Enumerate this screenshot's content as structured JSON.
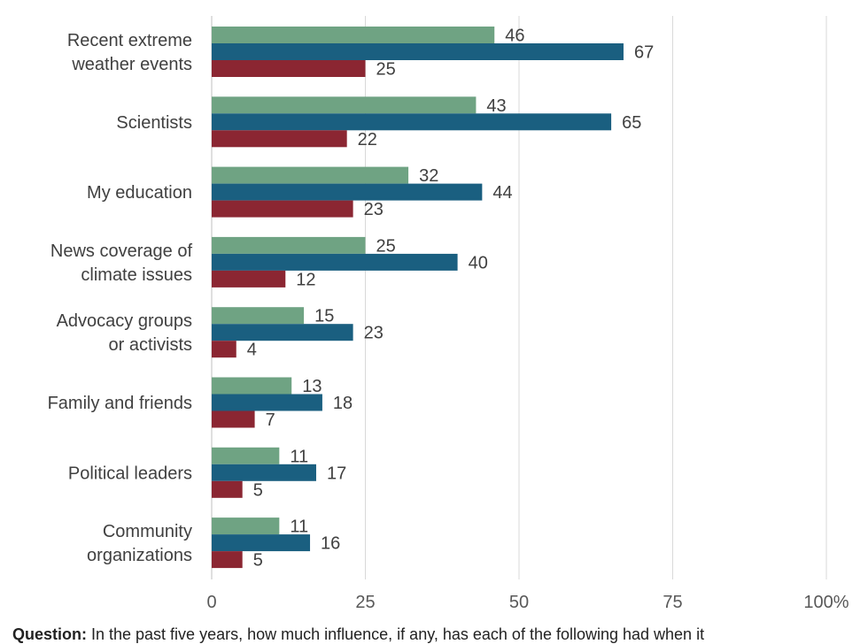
{
  "chart_data": {
    "type": "bar",
    "orientation": "horizontal",
    "categories": [
      [
        "Recent extreme",
        "weather events"
      ],
      [
        "Scientists"
      ],
      [
        "My education"
      ],
      [
        "News coverage of",
        "climate issues"
      ],
      [
        "Advocacy groups",
        "or activists"
      ],
      [
        "Family and friends"
      ],
      [
        "Political leaders"
      ],
      [
        "Community",
        "organizations"
      ]
    ],
    "series": [
      {
        "values": [
          46,
          43,
          32,
          25,
          15,
          13,
          11,
          11
        ],
        "color": "#6fa383"
      },
      {
        "values": [
          67,
          65,
          44,
          40,
          23,
          18,
          17,
          16
        ],
        "color": "#1a5f80"
      },
      {
        "values": [
          25,
          22,
          23,
          12,
          4,
          7,
          5,
          5
        ],
        "color": "#8b2632"
      }
    ],
    "x_ticks": [
      "0",
      "25",
      "50",
      "75",
      "100%"
    ],
    "xlim": [
      0,
      100
    ],
    "grid": true,
    "legend": "none"
  },
  "footer": {
    "question_label": "Question:",
    "question_text": " In the past five years, how much influence, if any, has each of the following had when it"
  }
}
